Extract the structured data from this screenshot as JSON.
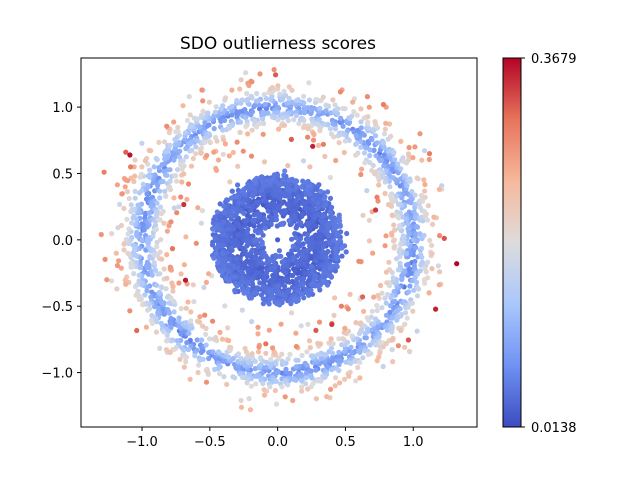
{
  "chart_data": {
    "type": "scatter",
    "title": "SDO outlierness scores",
    "xlabel": "",
    "ylabel": "",
    "xlim": [
      -1.45,
      1.47
    ],
    "ylim": [
      -1.41,
      1.37
    ],
    "xticks": [
      -1.0,
      -0.5,
      0.0,
      0.5,
      1.0
    ],
    "xtick_labels": [
      "−1.0",
      "−0.5",
      "0.0",
      "0.5",
      "1.0"
    ],
    "yticks": [
      -1.0,
      -0.5,
      0.0,
      0.5,
      1.0
    ],
    "ytick_labels": [
      "−1.0",
      "−0.5",
      "0.0",
      "0.5",
      "1.0"
    ],
    "grid": false,
    "colorbar": {
      "colormap": "coolwarm",
      "min": 0.0138,
      "max": 0.3679,
      "min_label": "0.0138",
      "max_label": "0.3679"
    },
    "colormap_stops": [
      "#3b4cc0",
      "#6f92f3",
      "#aac7fd",
      "#dddcdc",
      "#f7b89c",
      "#e7745b",
      "#b40426"
    ],
    "series": [
      {
        "description_points": [
          {
            "x": 0.0,
            "y": 0.0,
            "score": 0.03
          },
          {
            "x": -0.25,
            "y": 0.2,
            "score": 0.05
          },
          {
            "x": 0.25,
            "y": -0.2,
            "score": 0.05
          },
          {
            "x": 0.0,
            "y": -0.35,
            "score": 0.05
          },
          {
            "x": 0.0,
            "y": 1.0,
            "score": 0.1
          },
          {
            "x": 1.0,
            "y": 0.0,
            "score": 0.12
          },
          {
            "x": -1.0,
            "y": 0.0,
            "score": 0.12
          },
          {
            "x": 0.0,
            "y": -1.0,
            "score": 0.1
          },
          {
            "x": 1.32,
            "y": -0.18,
            "score": 0.3679
          },
          {
            "x": -1.12,
            "y": 0.66,
            "score": 0.32
          },
          {
            "x": -1.28,
            "y": 0.51,
            "score": 0.3
          },
          {
            "x": -1.3,
            "y": 0.04,
            "score": 0.28
          },
          {
            "x": -1.26,
            "y": -0.3,
            "score": 0.28
          },
          {
            "x": 1.12,
            "y": 0.65,
            "score": 0.3
          },
          {
            "x": 1.05,
            "y": 0.8,
            "score": 0.28
          },
          {
            "x": 0.47,
            "y": -0.5,
            "score": 0.3
          },
          {
            "x": 0.52,
            "y": -0.52,
            "score": 0.29
          },
          {
            "x": 0.4,
            "y": -0.63,
            "score": 0.28
          },
          {
            "x": -0.13,
            "y": 1.25,
            "score": 0.28
          },
          {
            "x": -0.2,
            "y": -1.28,
            "score": 0.25
          },
          {
            "x": 0.8,
            "y": 1.0,
            "score": 0.27
          },
          {
            "x": 0.78,
            "y": 1.02,
            "score": 0.3
          },
          {
            "x": -0.22,
            "y": 1.18,
            "score": 0.27
          }
        ]
      }
    ]
  }
}
